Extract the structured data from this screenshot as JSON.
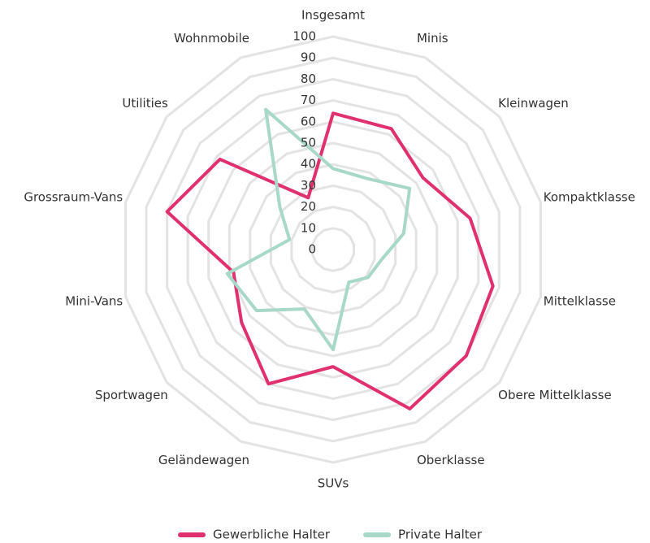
{
  "chart_data": {
    "type": "radar",
    "categories": [
      "Insgesamt",
      "Minis",
      "Kleinwagen",
      "Kompaktklasse",
      "Mittelklasse",
      "Obere Mittelklasse",
      "Oberklasse",
      "SUVs",
      "Geländewagen",
      "Sportwagen",
      "Mini-Vans",
      "Grossraum-Vans",
      "Utilities",
      "Wohnmobile"
    ],
    "series": [
      {
        "name": "Gewerbliche Halter",
        "color": "#e0306e",
        "values": [
          64,
          63,
          54,
          66,
          77,
          80,
          83,
          55,
          70,
          55,
          48,
          80,
          68,
          27
        ]
      },
      {
        "name": "Private Halter",
        "color": "#a8d8c8",
        "values": [
          38,
          37,
          46,
          34,
          23,
          21,
          17,
          47,
          31,
          46,
          51,
          21,
          32,
          73
        ]
      }
    ],
    "ylim": [
      0,
      100
    ],
    "yticks": [
      0,
      10,
      20,
      30,
      40,
      50,
      60,
      70,
      80,
      90,
      100
    ],
    "grid": true,
    "legend": "bottom"
  }
}
